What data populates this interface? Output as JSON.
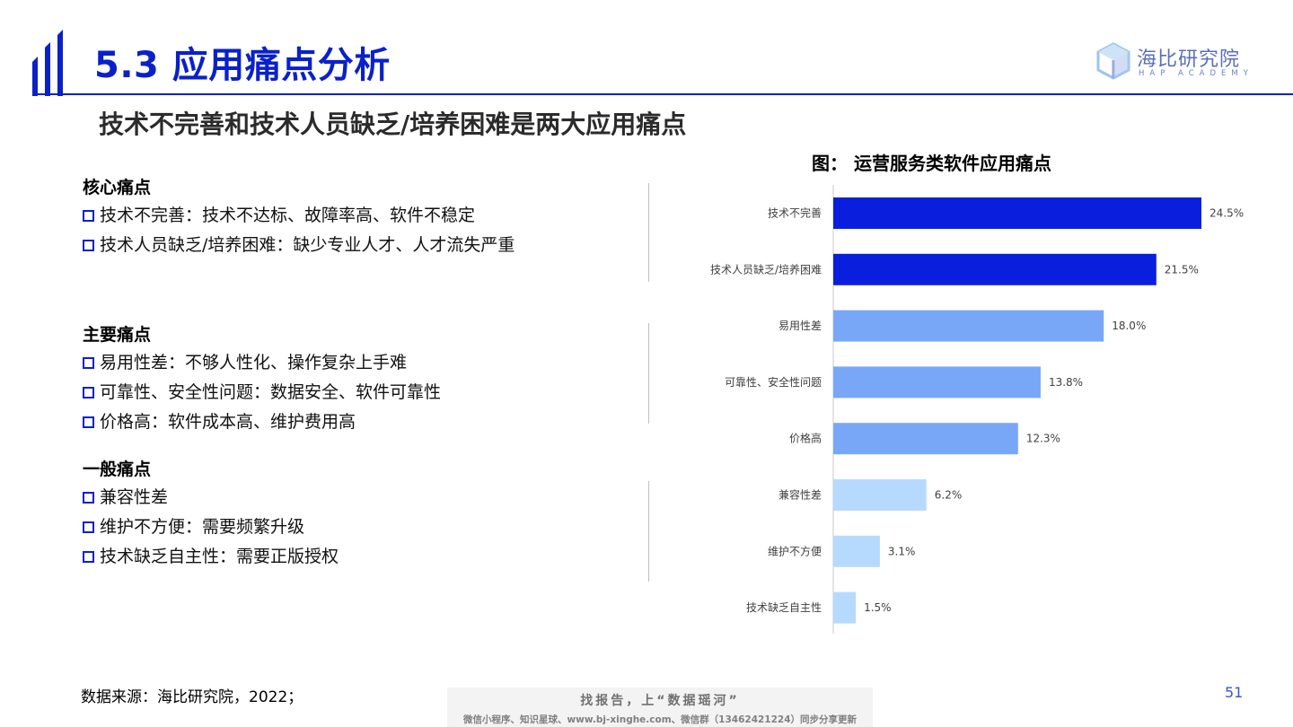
{
  "header": {
    "title": "5.3 应用痛点分析",
    "logo_name": "海比研究院",
    "logo_sub": "HAP ACADEMY"
  },
  "subtitle": "技术不完善和技术人员缺乏/培养困难是两大应用痛点",
  "groups": [
    {
      "title": "核心痛点",
      "items": [
        "技术不完善：技术不达标、故障率高、软件不稳定",
        "技术人员缺乏/培养困难：缺少专业人才、人才流失严重"
      ]
    },
    {
      "title": "主要痛点",
      "items": [
        "易用性差：不够人性化、操作复杂上手难",
        "可靠性、安全性问题：数据安全、软件可靠性",
        "价格高：软件成本高、维护费用高"
      ]
    },
    {
      "title": "一般痛点",
      "items": [
        "兼容性差",
        "维护不方便：需要频繁升级",
        "技术缺乏自主性：需要正版授权"
      ]
    }
  ],
  "chart_data": {
    "type": "bar",
    "orientation": "horizontal",
    "title": "图： 运营服务类软件应用痛点",
    "categories": [
      "技术不完善",
      "技术人员缺乏/培养困难",
      "易用性差",
      "可靠性、安全性问题",
      "价格高",
      "兼容性差",
      "维护不方便",
      "技术缺乏自主性"
    ],
    "values": [
      24.5,
      21.5,
      18.0,
      13.8,
      12.3,
      6.2,
      3.1,
      1.5
    ],
    "labels": [
      "24.5%",
      "21.5%",
      "18.0%",
      "13.8%",
      "12.3%",
      "6.2%",
      "3.1%",
      "1.5%"
    ],
    "bar_colors": [
      "#0a1fdd",
      "#0a1fdd",
      "#79a7f8",
      "#79a7f8",
      "#79a7f8",
      "#b6dafd",
      "#b6dafd",
      "#b6dafd"
    ],
    "grid": false
  },
  "footer": {
    "source": "数据来源：海比研究院，2022；",
    "page_number": "51",
    "watermark_line1": "找报告，上“数据瑶河”",
    "watermark_line2": "微信小程序、知识星球、www.bj-xinghe.com、微信群（13462421224）同步分享更新"
  },
  "colors": {
    "accent": "#0a21c9",
    "core_bar": "#0a1fdd",
    "main_bar": "#79a7f8",
    "general_bar": "#b6dafd"
  }
}
